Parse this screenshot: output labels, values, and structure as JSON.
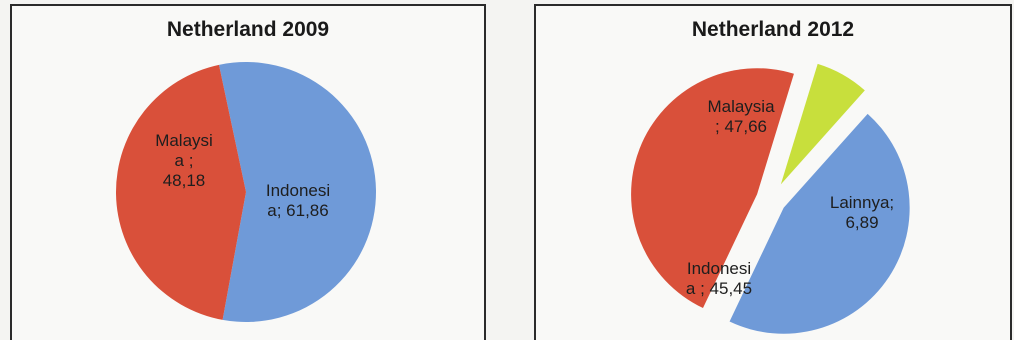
{
  "chart_data": [
    {
      "type": "pie",
      "title": "Netherland 2009",
      "slices": [
        {
          "label_lines": [
            "Indonesi",
            "a; 61,86"
          ],
          "value": 61.86,
          "color": "#6f9ad8"
        },
        {
          "label_lines": [
            "Malaysi",
            "a ;",
            "48,18"
          ],
          "value": 48.18,
          "color": "#d9503a"
        }
      ]
    },
    {
      "type": "pie",
      "title": "Netherland 2012",
      "slices": [
        {
          "label_lines": [
            "Lainnya;",
            "6,89"
          ],
          "value": 6.89,
          "color": "#c8df3c"
        },
        {
          "label_lines": [
            "Indonesi",
            "a ; 45,45"
          ],
          "value": 45.45,
          "color": "#6f9ad8"
        },
        {
          "label_lines": [
            "Malaysia",
            "; 47,66"
          ],
          "value": 47.66,
          "color": "#d9503a"
        }
      ]
    }
  ]
}
